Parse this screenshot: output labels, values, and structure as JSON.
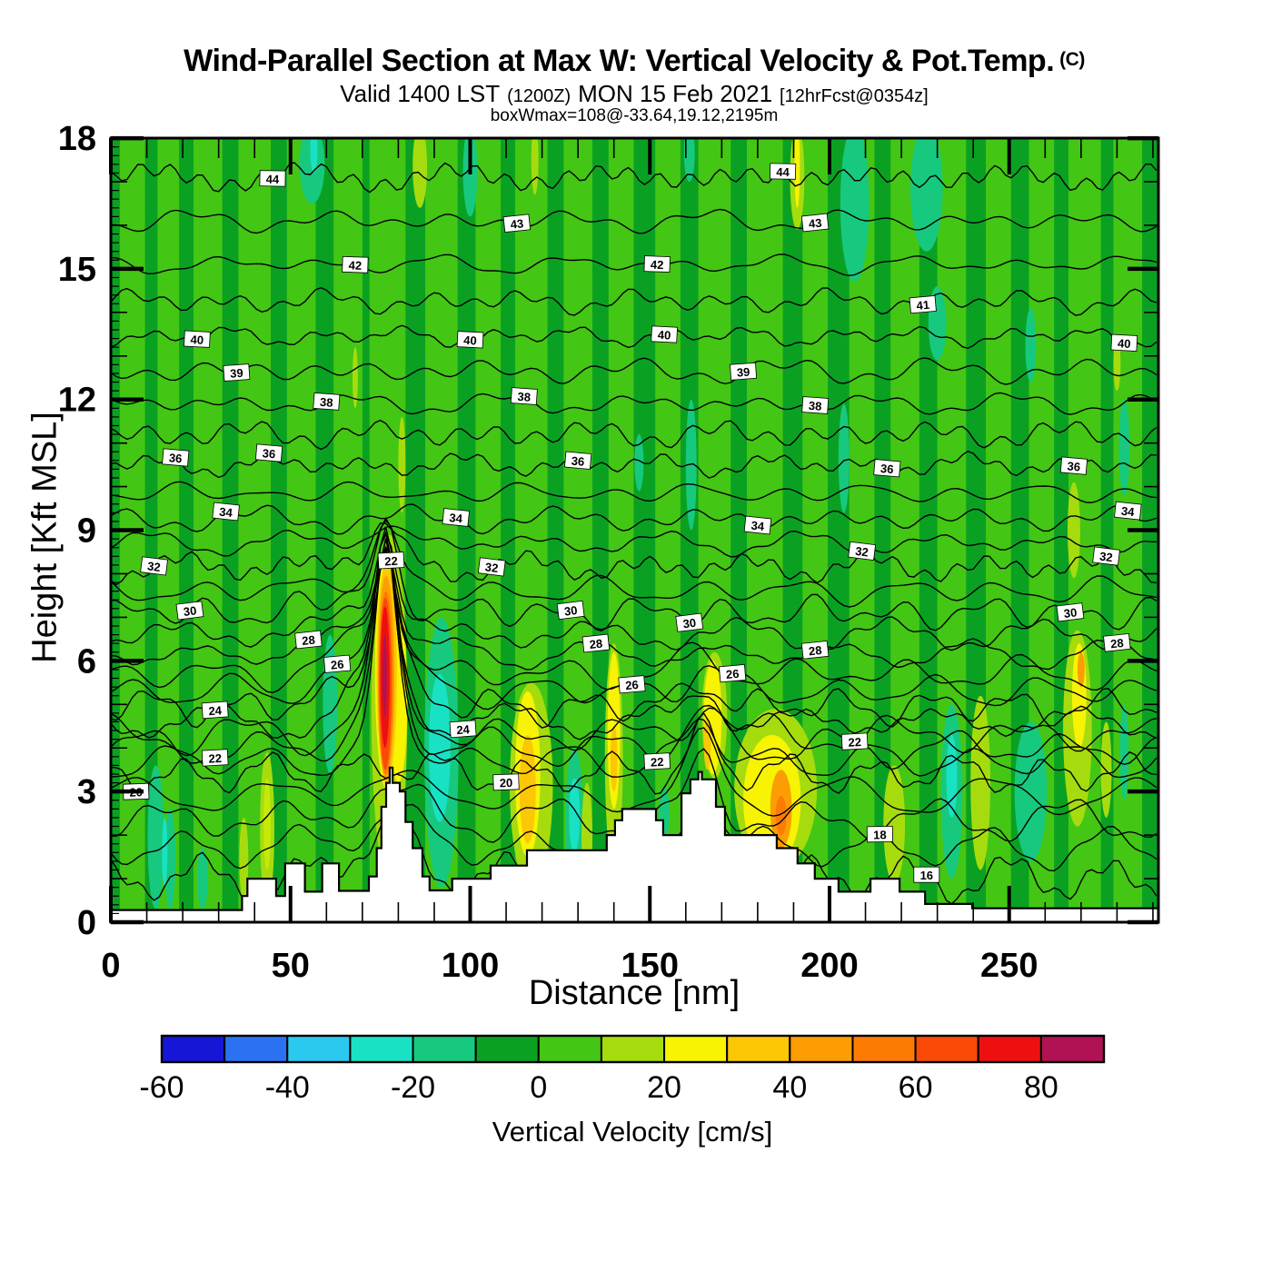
{
  "header": {
    "title": "Wind-Parallel Section at Max W: Vertical Velocity & Pot.Temp.",
    "title_units": "(C)",
    "valid_prefix": "Valid 1400 LST",
    "valid_zulu": "(1200Z)",
    "valid_date": "MON 15 Feb 2021",
    "fcst_tag": "[12hrFcst@0354z]",
    "boxwmax": "boxWmax=108@-33.64,19.12,2195m"
  },
  "axes": {
    "x": {
      "title": "Distance [nm]",
      "tick_labels": [
        "0",
        "50",
        "100",
        "150",
        "200",
        "250"
      ],
      "tick_values": [
        0,
        50,
        100,
        150,
        200,
        250
      ],
      "minor_step": 10,
      "range": [
        0,
        291.5
      ]
    },
    "y": {
      "title": "Height [Kft MSL]",
      "tick_labels": [
        "0",
        "3",
        "6",
        "9",
        "12",
        "15",
        "18"
      ],
      "tick_values": [
        0,
        3,
        6,
        9,
        12,
        15,
        18
      ],
      "minor_step": 0.2,
      "range": [
        0,
        18
      ]
    }
  },
  "colorbar": {
    "title": "Vertical Velocity [cm/s]",
    "range": [
      -60,
      90
    ],
    "segment_step": 10,
    "segment_colors": [
      "#1616d6",
      "#2b72f2",
      "#2bc9f0",
      "#19e2c4",
      "#17c97f",
      "#0aa123",
      "#44c614",
      "#a6dc0e",
      "#f7f303",
      "#fcc704",
      "#fc9d04",
      "#fc7b03",
      "#f94b07",
      "#ee1011",
      "#b01253"
    ],
    "tick_labels": [
      "-60",
      "-40",
      "-20",
      "0",
      "20",
      "40",
      "60",
      "80"
    ],
    "tick_values": [
      -60,
      -40,
      -20,
      0,
      20,
      40,
      60,
      80
    ]
  },
  "chart_data": {
    "type": "heatmap",
    "field": "vertical velocity [cm/s], filled contours every 10 cm/s from -60 to 90",
    "overlay": "potential temperature contours [C], 1 C interval, values 16 to 44",
    "title": "Wind-Parallel Section at Max W: Vertical Velocity & Pot.Temp. (C)",
    "xlabel": "Distance [nm]",
    "ylabel": "Height [Kft MSL]",
    "xlim": [
      0,
      291.5
    ],
    "ylim": [
      0,
      18
    ],
    "colors": {
      "dg": "#0aa123",
      "mg": "#44c614",
      "t": "#17c97f",
      "c": "#19e2c4",
      "g": "#a6dc0e",
      "gb": "#c6ea07",
      "y": "#f7f303",
      "go": "#fcc704",
      "o": "#fc9d04",
      "od": "#fc7b03",
      "or": "#f94b07",
      "r": "#ee1011",
      "m": "#b01253"
    },
    "max_updraft_note": "strong updraft plume ~90 cm/s near 77 nm between 4 and 7 kft",
    "stripes": [
      [
        6,
        7
      ],
      [
        16,
        6
      ],
      [
        27,
        8
      ],
      [
        40,
        9
      ],
      [
        53,
        8
      ],
      [
        66,
        8
      ],
      [
        77,
        10
      ],
      [
        92,
        9
      ],
      [
        105,
        7
      ],
      [
        117,
        9
      ],
      [
        130,
        8
      ],
      [
        142,
        7
      ],
      [
        155,
        7
      ],
      [
        168,
        9
      ],
      [
        182,
        10
      ],
      [
        196,
        7
      ],
      [
        209,
        7
      ],
      [
        221,
        8
      ],
      [
        234,
        8
      ],
      [
        247,
        7
      ],
      [
        259,
        7
      ],
      [
        271,
        9
      ],
      [
        283,
        8
      ]
    ],
    "features": [
      [
        56,
        7,
        16.5,
        18.3,
        "t"
      ],
      [
        56.5,
        2,
        17.2,
        18.3,
        "c"
      ],
      [
        100,
        4,
        16.2,
        18.3,
        "t"
      ],
      [
        161,
        3,
        17.0,
        18.3,
        "t"
      ],
      [
        207,
        8,
        14.7,
        18.3,
        "t"
      ],
      [
        227,
        9,
        15.4,
        18.3,
        "t"
      ],
      [
        230,
        5,
        12.9,
        14.6,
        "t"
      ],
      [
        256,
        3,
        12.4,
        14.1,
        "t"
      ],
      [
        147,
        2.5,
        9.9,
        11.2,
        "t"
      ],
      [
        161.5,
        3,
        9.0,
        12.0,
        "t"
      ],
      [
        204,
        3,
        9.4,
        11.9,
        "t"
      ],
      [
        282,
        3,
        9.8,
        12.0,
        "t"
      ],
      [
        12.5,
        4.5,
        0.3,
        3.6,
        "t"
      ],
      [
        16.5,
        3,
        0.3,
        2.6,
        "t"
      ],
      [
        15,
        1.5,
        0.8,
        2.4,
        "c"
      ],
      [
        25.5,
        3,
        0.3,
        1.7,
        "t"
      ],
      [
        61,
        4,
        3.4,
        6.6,
        "t"
      ],
      [
        92,
        9.5,
        0.8,
        7.0,
        "t"
      ],
      [
        91.5,
        6,
        2.3,
        5.7,
        "c"
      ],
      [
        129,
        5,
        0.7,
        4.0,
        "t"
      ],
      [
        129,
        3,
        1.6,
        3.3,
        "c"
      ],
      [
        154,
        3,
        1.9,
        3.1,
        "t"
      ],
      [
        234,
        6,
        1.0,
        5.0,
        "t"
      ],
      [
        234,
        3,
        2.4,
        4.3,
        "c"
      ],
      [
        256,
        9,
        1.4,
        4.6,
        "t"
      ],
      [
        282,
        2.5,
        2.8,
        5.0,
        "t"
      ],
      [
        86,
        4,
        16.4,
        18.3,
        "g"
      ],
      [
        118,
        2,
        16.7,
        18.3,
        "g"
      ],
      [
        191,
        4,
        15.9,
        18.3,
        "g"
      ],
      [
        191,
        1.5,
        16.4,
        18.3,
        "y"
      ],
      [
        268,
        3.5,
        7.9,
        10.1,
        "g"
      ],
      [
        280,
        2,
        12.2,
        13.4,
        "g"
      ],
      [
        81,
        2,
        9.4,
        11.6,
        "g"
      ],
      [
        68,
        1.5,
        11.8,
        13.2,
        "g"
      ],
      [
        37,
        2.5,
        0.5,
        2.4,
        "g"
      ],
      [
        43.5,
        4,
        0.4,
        3.9,
        "g"
      ],
      [
        43.5,
        2,
        1.2,
        3.3,
        "gb"
      ],
      [
        117,
        12,
        0.8,
        5.5,
        "g"
      ],
      [
        132.5,
        3,
        0.7,
        3.2,
        "g"
      ],
      [
        140,
        5,
        1.2,
        6.4,
        "g"
      ],
      [
        168,
        7,
        3.3,
        6.2,
        "g"
      ],
      [
        185,
        23,
        1.2,
        4.9,
        "g"
      ],
      [
        218,
        6,
        0.9,
        3.6,
        "g"
      ],
      [
        242,
        5.5,
        1.2,
        5.2,
        "g"
      ],
      [
        269,
        8,
        2.2,
        6.7,
        "g"
      ],
      [
        277,
        3,
        2.4,
        4.6,
        "g"
      ],
      [
        116,
        7,
        1.5,
        5.3,
        "y"
      ],
      [
        116,
        4.5,
        1.8,
        4.3,
        "go"
      ],
      [
        140,
        3.5,
        2.6,
        6.2,
        "y"
      ],
      [
        140,
        2,
        3.0,
        4.5,
        "go"
      ],
      [
        167.5,
        5,
        3.4,
        6.0,
        "y"
      ],
      [
        166,
        2,
        3.5,
        4.7,
        "go"
      ],
      [
        184,
        16,
        1.3,
        4.3,
        "y"
      ],
      [
        186.5,
        6,
        1.7,
        3.5,
        "o"
      ],
      [
        186.5,
        3,
        2.0,
        2.9,
        "od"
      ],
      [
        269.5,
        4,
        4.0,
        6.4,
        "y"
      ],
      [
        270,
        2,
        5.4,
        6.2,
        "o"
      ],
      [
        77.5,
        10,
        0.9,
        8.9,
        "g"
      ],
      [
        77,
        7,
        3.0,
        8.55,
        "y"
      ],
      [
        80,
        5,
        3.2,
        7.0,
        "y"
      ],
      [
        76.8,
        5.6,
        3.2,
        8.25,
        "go"
      ],
      [
        76.6,
        4.6,
        3.3,
        7.95,
        "o"
      ],
      [
        76.5,
        4.0,
        3.4,
        7.6,
        "od"
      ],
      [
        76.4,
        3.4,
        3.5,
        7.45,
        "or"
      ],
      [
        76.3,
        2.6,
        4.0,
        7.25,
        "r"
      ],
      [
        76.2,
        1.2,
        4.7,
        6.6,
        "m"
      ]
    ],
    "terrain_steps": [
      [
        0,
        36.5,
        0.28
      ],
      [
        36.5,
        38,
        0.6
      ],
      [
        38,
        46,
        1.0
      ],
      [
        46,
        48.5,
        0.6
      ],
      [
        48.5,
        54,
        1.35
      ],
      [
        54,
        58.8,
        0.7
      ],
      [
        58.8,
        63.5,
        1.35
      ],
      [
        63.5,
        71.8,
        0.72
      ],
      [
        71.8,
        74,
        1.05
      ],
      [
        74,
        75.3,
        1.7
      ],
      [
        75.3,
        76.6,
        2.65
      ],
      [
        76.6,
        77.6,
        3.2
      ],
      [
        77.6,
        78.4,
        3.55
      ],
      [
        78.4,
        80.4,
        3.2
      ],
      [
        80.4,
        82,
        3.0
      ],
      [
        82,
        84,
        2.3
      ],
      [
        84,
        86.7,
        1.7
      ],
      [
        86.7,
        88.7,
        1.05
      ],
      [
        88.7,
        95,
        0.73
      ],
      [
        95,
        105.7,
        1.0
      ],
      [
        105.7,
        115.8,
        1.3
      ],
      [
        115.8,
        138,
        1.65
      ],
      [
        138,
        140.3,
        2.0
      ],
      [
        140.3,
        142.3,
        2.34
      ],
      [
        142.3,
        151.7,
        2.6
      ],
      [
        151.7,
        153.7,
        2.34
      ],
      [
        153.7,
        158.8,
        2.0
      ],
      [
        158.8,
        161.3,
        2.96
      ],
      [
        161.3,
        163.5,
        3.28
      ],
      [
        163.5,
        164.5,
        3.45
      ],
      [
        164.5,
        168.4,
        3.28
      ],
      [
        168.4,
        170.9,
        2.65
      ],
      [
        170.9,
        185.3,
        2.0
      ],
      [
        185.3,
        191.1,
        1.7
      ],
      [
        191.1,
        195.9,
        1.35
      ],
      [
        195.9,
        202.5,
        1.0
      ],
      [
        202.5,
        211.4,
        0.7
      ],
      [
        211.4,
        219.5,
        1.0
      ],
      [
        219.5,
        226.6,
        0.7
      ],
      [
        226.6,
        239.7,
        0.42
      ],
      [
        239.7,
        291.5,
        0.32
      ]
    ],
    "contours": {
      "values": [
        44,
        43,
        42,
        41,
        40,
        39,
        38,
        37,
        36,
        35,
        34,
        33,
        32,
        31,
        30,
        29,
        28,
        27,
        26,
        25,
        24,
        23,
        22,
        21,
        20,
        19,
        18,
        17,
        16
      ],
      "base_heights": {
        "44": 17.1,
        "43": 16.1,
        "42": 15.1,
        "41": 14.25,
        "40": 13.45,
        "39": 12.65,
        "38": 11.9,
        "37": 11.2,
        "36": 10.5,
        "35": 9.85,
        "34": 9.25,
        "33": 8.7,
        "32": 8.15,
        "31": 7.6,
        "30": 7.1,
        "29": 6.6,
        "28": 6.15,
        "27": 5.7,
        "26": 5.3,
        "25": 4.95,
        "24": 4.6,
        "23": 4.3,
        "22": 4.0,
        "21": 3.7,
        "20": 3.4,
        "19": 2.9,
        "18": 2.35,
        "17": 1.7,
        "16": 1.0
      },
      "labels": [
        [
          44,
          45
        ],
        [
          44,
          187
        ],
        [
          43,
          113
        ],
        [
          43,
          196
        ],
        [
          42,
          68
        ],
        [
          42,
          152
        ],
        [
          41,
          226
        ],
        [
          40,
          24
        ],
        [
          40,
          100
        ],
        [
          40,
          154
        ],
        [
          40,
          282
        ],
        [
          39,
          35
        ],
        [
          39,
          176
        ],
        [
          38,
          60
        ],
        [
          38,
          115
        ],
        [
          38,
          196
        ],
        [
          36,
          18
        ],
        [
          36,
          44
        ],
        [
          36,
          130
        ],
        [
          36,
          216
        ],
        [
          36,
          268
        ],
        [
          34,
          32
        ],
        [
          34,
          96
        ],
        [
          34,
          180
        ],
        [
          34,
          283
        ],
        [
          32,
          12
        ],
        [
          32,
          106
        ],
        [
          32,
          209
        ],
        [
          32,
          277
        ],
        [
          30,
          22
        ],
        [
          30,
          128
        ],
        [
          30,
          161
        ],
        [
          30,
          267
        ],
        [
          28,
          55
        ],
        [
          28,
          135
        ],
        [
          28,
          196
        ],
        [
          28,
          280
        ],
        [
          26,
          63
        ],
        [
          26,
          145
        ],
        [
          26,
          173
        ],
        [
          24,
          29
        ],
        [
          24,
          98
        ],
        [
          22,
          29
        ],
        [
          22,
          78
        ],
        [
          22,
          152
        ],
        [
          22,
          207
        ],
        [
          20,
          7
        ],
        [
          20,
          110
        ],
        [
          18,
          214
        ],
        [
          16,
          227
        ]
      ]
    }
  }
}
